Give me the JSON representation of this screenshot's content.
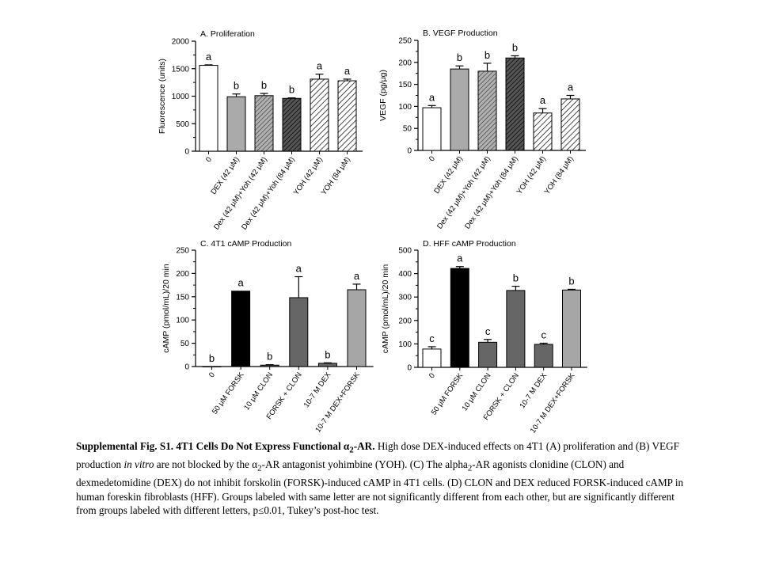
{
  "chart_data": [
    {
      "type": "bar",
      "title": "A. Proliferation",
      "ylabel": "Fluorescence (units)",
      "ylim": [
        0,
        2000
      ],
      "yticks": [
        "0",
        "500",
        "1000",
        "1500",
        "2000"
      ],
      "categories": [
        "0",
        "DEX (42 μM)",
        "Dex (42 μM)+Yoh (42 μM)",
        "Dex (42 μM)+Yoh (84 μM)",
        "YOH (42 μM)",
        "YOH (84 μM)"
      ],
      "values": [
        1560,
        990,
        1010,
        960,
        1310,
        1280
      ],
      "errors": [
        10,
        50,
        40,
        10,
        90,
        30
      ],
      "letters": [
        "a",
        "b",
        "b",
        "b",
        "a",
        "a"
      ],
      "fills": [
        "white",
        "gray",
        "hatch-gray",
        "hatch-dark",
        "hatch-white",
        "hatch-white"
      ]
    },
    {
      "type": "bar",
      "title": "B. VEGF Production",
      "ylabel": "VEGF (pg/μg)",
      "ylim": [
        0,
        250
      ],
      "yticks": [
        "0",
        "50",
        "100",
        "150",
        "200",
        "250"
      ],
      "categories": [
        "0",
        "DEX (42 μM)",
        "Dex (42 μM)+Yoh (42 μM)",
        "Dex (42 μM)+Yoh (84 μM)",
        "YOH (42 μM)",
        "YOH (84 μM)"
      ],
      "values": [
        97,
        185,
        180,
        210,
        85,
        117
      ],
      "errors": [
        5,
        7,
        18,
        5,
        10,
        8
      ],
      "letters": [
        "a",
        "b",
        "b",
        "b",
        "a",
        "a"
      ],
      "fills": [
        "white",
        "gray",
        "hatch-gray",
        "hatch-dark",
        "hatch-white",
        "hatch-white"
      ]
    },
    {
      "type": "bar",
      "title": "C. 4T1 cAMP Production",
      "ylabel": "cAMP (pmol/mL)/20 min",
      "ylim": [
        0,
        250
      ],
      "yticks": [
        "0",
        "50",
        "100",
        "150",
        "200",
        "250"
      ],
      "categories": [
        "0",
        "50 μM FORSK",
        "10 μM CLON",
        "FORSK + CLON",
        "10-7 M DEX",
        "10-7 M DEX+FORSK"
      ],
      "values": [
        0,
        162,
        3,
        148,
        7,
        165
      ],
      "errors": [
        0,
        0,
        1,
        45,
        1,
        12
      ],
      "letters": [
        "b",
        "a",
        "b",
        "a",
        "b",
        "a"
      ],
      "fills": [
        "white",
        "black",
        "darkgray",
        "darkgray",
        "darkgray",
        "lightgray"
      ]
    },
    {
      "type": "bar",
      "title": "D. HFF cAMP Production",
      "ylabel": "cAMP (pmol/mL)/20 min",
      "ylim": [
        0,
        500
      ],
      "yticks": [
        "0",
        "100",
        "200",
        "300",
        "400",
        "500"
      ],
      "categories": [
        "0",
        "50 μM FORSK",
        "10 μM CLON",
        "FORSK + CLON",
        "10-7 M DEX",
        "10-7 M DEX+FORSK"
      ],
      "values": [
        78,
        422,
        107,
        328,
        98,
        330
      ],
      "errors": [
        10,
        8,
        12,
        18,
        5,
        3
      ],
      "letters": [
        "c",
        "a",
        "c",
        "b",
        "c",
        "b"
      ],
      "fills": [
        "white",
        "black",
        "darkgray",
        "darkgray",
        "darkgray",
        "lightgray"
      ]
    }
  ],
  "caption": {
    "bold_lead": "Supplemental Fig. S1. 4T1 Cells Do Not Express Functional α",
    "bold_sub": "2",
    "bold_tail": "-AR.",
    "part1": " High dose DEX-induced effects on 4T1 (A) proliferation and (B) VEGF production ",
    "italic": "in vitro",
    "part2": " are not blocked by the α",
    "part2_sub": "2",
    "part3": "-AR antagonist yohimbine (YOH). (C) The alpha",
    "part3_sub": "2",
    "part4": "-AR agonists clonidine (CLON) and dexmedetomidine (DEX) do not inhibit forskolin (FORSK)-induced cAMP in 4T1 cells. (D) CLON and DEX reduced FORSK-induced cAMP in human foreskin fibroblasts (HFF). Groups labeled with same letter are not significantly different from each other, but are significantly different from groups labeled with different letters, p≤0.01, Tukey’s post-hoc test."
  }
}
